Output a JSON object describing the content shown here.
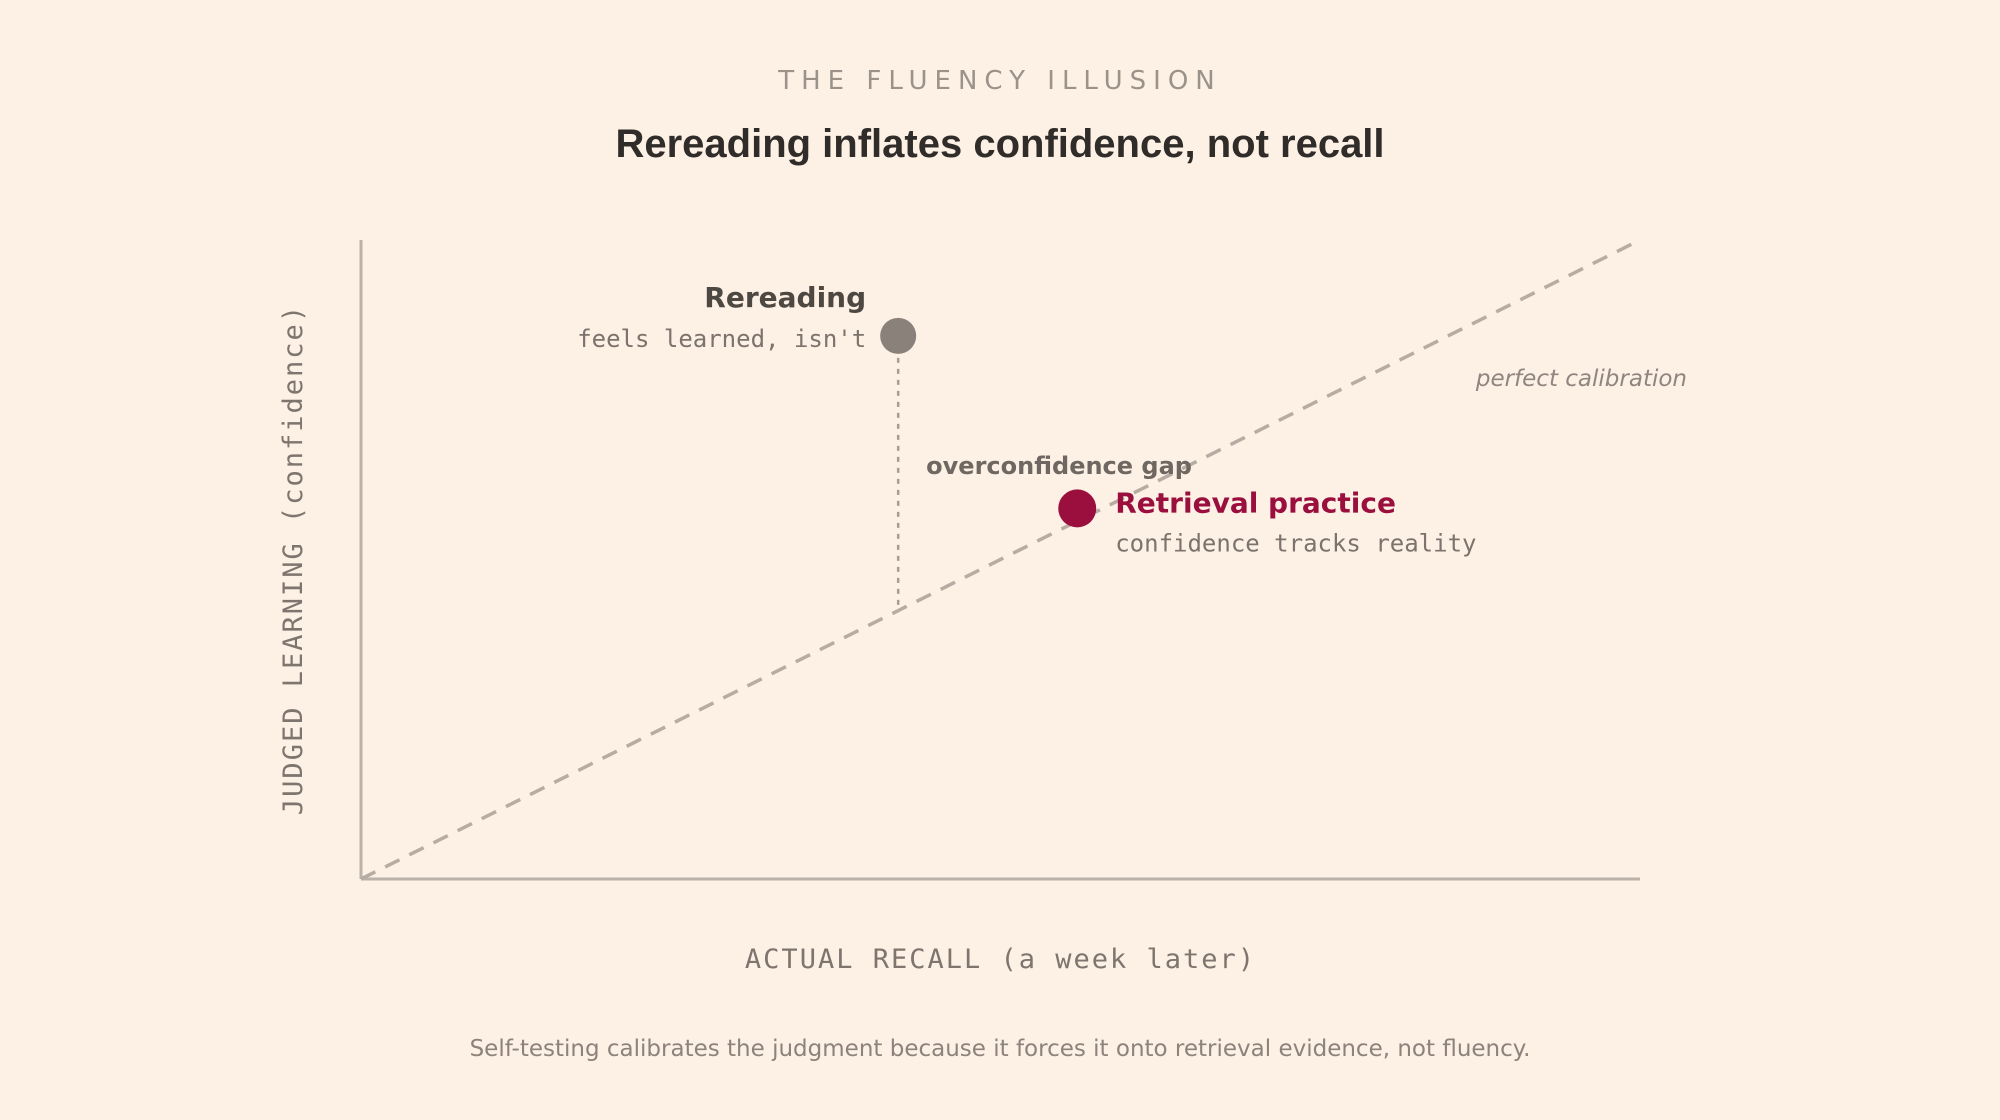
{
  "header": {
    "kicker": "THE FLUENCY ILLUSION",
    "title": "Rereading inflates confidence, not recall"
  },
  "footer": {
    "caption": "Self-testing calibrates the judgment because it forces it onto retrieval evidence, not fluency."
  },
  "chart_data": {
    "type": "scatter",
    "title": "Rereading inflates confidence, not recall",
    "xlabel": "ACTUAL RECALL (a week later)",
    "ylabel": "JUDGED LEARNING (confidence)",
    "xlim": [
      0,
      1
    ],
    "ylim": [
      0,
      1
    ],
    "grid": false,
    "ticks": false,
    "reference_line": {
      "label": "perfect calibration",
      "from": [
        0,
        0
      ],
      "to": [
        1,
        1
      ],
      "style": "dashed"
    },
    "points": [
      {
        "name": "Rereading",
        "note": "feels learned, isn't",
        "x": 0.42,
        "y": 0.85,
        "color": "#8a817a"
      },
      {
        "name": "Retrieval practice",
        "note": "confidence tracks reality",
        "x": 0.56,
        "y": 0.58,
        "color": "#9a0f3e"
      }
    ],
    "gap_annotation": {
      "label": "overconfidence gap",
      "x": 0.42,
      "from_y": 0.42,
      "to_y": 0.85
    },
    "colors": {
      "background": "#fdf0e5",
      "axis": "#bbb2aa",
      "reference": "#b7aca3",
      "accent": "#9a0f3e",
      "muted_point": "#8a817a"
    }
  }
}
